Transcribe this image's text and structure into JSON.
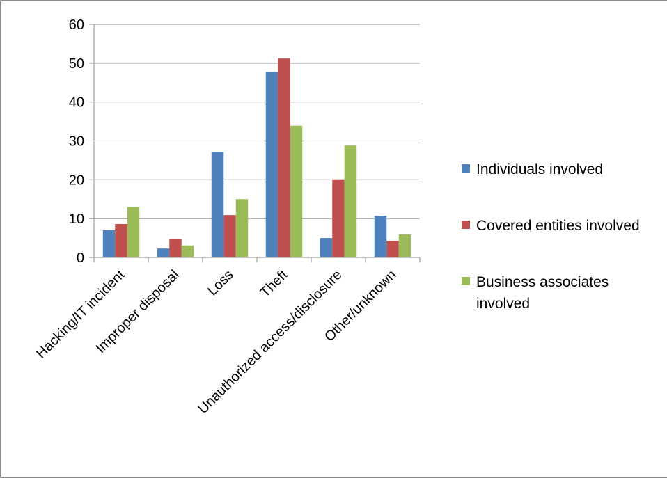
{
  "chart_data": {
    "type": "bar",
    "categories": [
      "Hacking/IT incident",
      "Improper disposal",
      "Loss",
      "Theft",
      "Unauthorized access/disclosure",
      "Other/unknown"
    ],
    "series": [
      {
        "name": "Individuals involved",
        "color": "#4f81bd",
        "values": [
          7,
          2.3,
          27.2,
          47.7,
          5,
          10.7
        ]
      },
      {
        "name": "Covered entities involved",
        "color": "#c0504d",
        "values": [
          8.6,
          4.7,
          10.9,
          51.2,
          20.1,
          4.3
        ]
      },
      {
        "name": "Business associates involved",
        "color": "#9bbb59",
        "values": [
          13,
          3.1,
          15,
          33.9,
          28.8,
          5.9
        ]
      }
    ],
    "ylim": [
      0,
      60
    ],
    "yticks": [
      0,
      10,
      20,
      30,
      40,
      50,
      60
    ],
    "grid": true,
    "legend": "right",
    "legend_lines": [
      [
        "Individuals involved"
      ],
      [
        "Covered entities involved"
      ],
      [
        "Business associates",
        "involved"
      ]
    ]
  }
}
